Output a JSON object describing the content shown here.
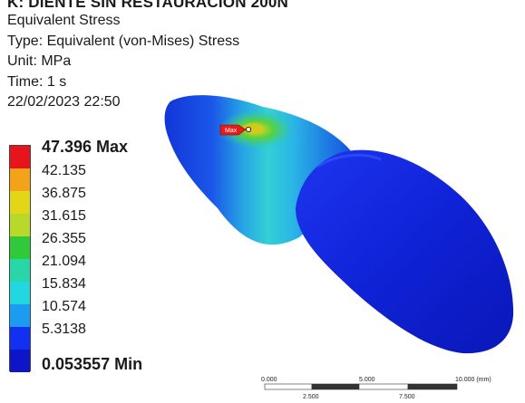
{
  "header": {
    "title": "K: DIENTE SIN RESTAURACION 200N",
    "result_name": "Equivalent Stress",
    "type": "Type: Equivalent (von-Mises) Stress",
    "unit": "Unit: MPa",
    "time": "Time: 1 s",
    "timestamp": "22/02/2023 22:50"
  },
  "legend": {
    "max_label": "47.396 Max",
    "min_label": "0.053557 Min",
    "levels": [
      "42.135",
      "36.875",
      "31.615",
      "26.355",
      "21.094",
      "15.834",
      "10.574",
      "5.3138"
    ],
    "colors": [
      "#e8141c",
      "#f4a21a",
      "#e3d619",
      "#b8d92a",
      "#2fc93a",
      "#28d6a8",
      "#21d8e0",
      "#1c9cf0",
      "#1230f2",
      "#0d15c8"
    ]
  },
  "probe": {
    "label": "Max"
  },
  "scale_bar": {
    "top_ticks": [
      "0.000",
      "5.000",
      "10.000 (mm)"
    ],
    "bottom_ticks": [
      "2.500",
      "7.500"
    ]
  }
}
